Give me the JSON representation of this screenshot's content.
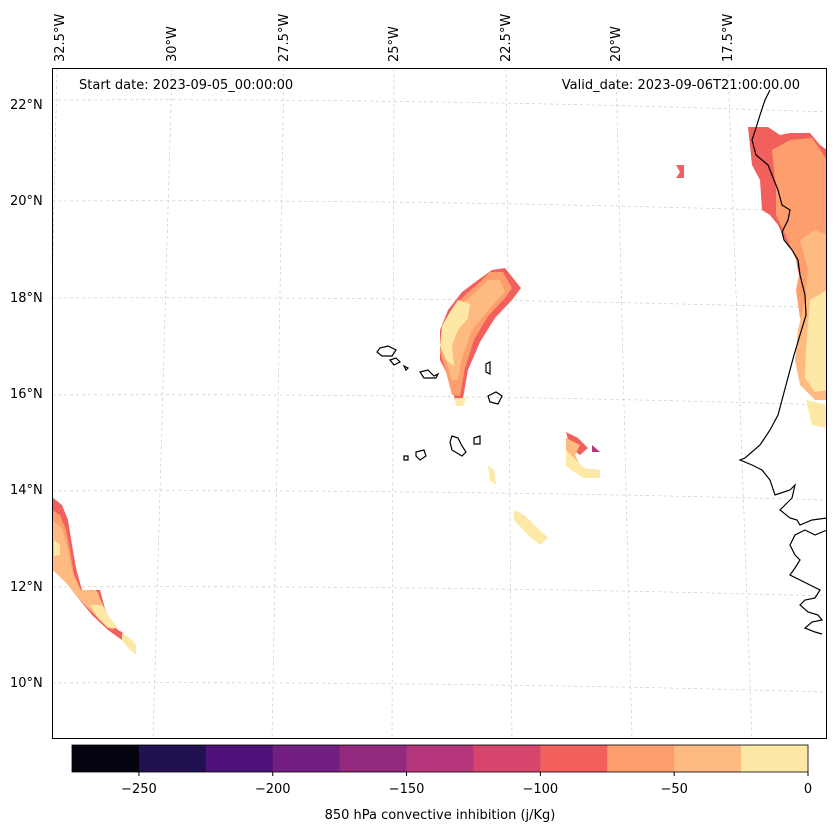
{
  "header": {
    "start_date": "Start date: 2023-09-05_00:00:00",
    "valid_date": "Valid_date: 2023-09-06T21:00:00.00"
  },
  "longitude_labels": [
    "32.5°W",
    "30°W",
    "27.5°W",
    "25°W",
    "22.5°W",
    "20°W",
    "17.5°W"
  ],
  "latitude_labels": [
    "22°N",
    "20°N",
    "18°N",
    "16°N",
    "14°N",
    "12°N",
    "10°N"
  ],
  "colorbar": {
    "label": "850 hPa convective inhibition (j/Kg)",
    "ticks": [
      "−250",
      "−200",
      "−150",
      "−100",
      "−50",
      "0"
    ],
    "colors": [
      "#03040f",
      "#221150",
      "#4f127b",
      "#721f81",
      "#932a7e",
      "#b5367a",
      "#d6456c",
      "#f1605d",
      "#fe9e6c",
      "#febb81",
      "#fde8a5"
    ]
  },
  "chart_data": {
    "type": "filled-contour map",
    "title": "850 hPa convective inhibition",
    "variable": "850 hPa convective inhibition",
    "units": "j/Kg",
    "levels": [
      -275,
      -250,
      -225,
      -200,
      -175,
      -150,
      -125,
      -100,
      -75,
      -50,
      -25,
      0
    ],
    "colorbar_range": [
      -275,
      0
    ],
    "extent": {
      "lon": [
        -33,
        -16
      ],
      "lat": [
        9,
        23
      ]
    },
    "gridlines": true
  }
}
